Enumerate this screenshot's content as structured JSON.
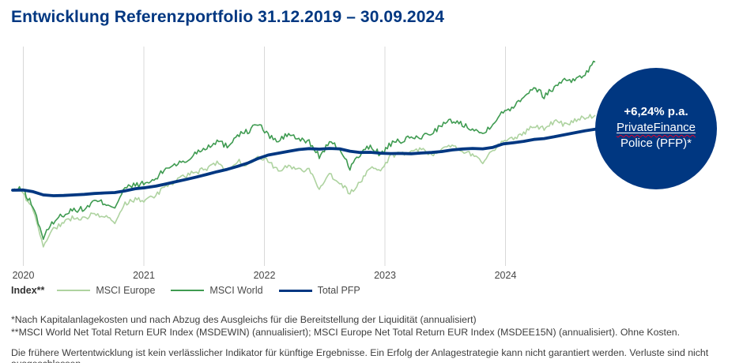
{
  "title": "Entwicklung Referenzportfolio 31.12.2019 – 30.09.2024",
  "badge": {
    "line1": "+6,24% p.a.",
    "line2": "PrivateFinance",
    "line3": "Police (PFP)*",
    "bg": "#003781",
    "text_color": "#ffffff",
    "wavy_underline_color": "#e4002b"
  },
  "legend": {
    "label": "Index**"
  },
  "footnotes": [
    "*Nach Kapitalanlagekosten und nach Abzug des Ausgleichs für die Bereitstellung der Liquidität (annualisiert)",
    "**MSCI World Net Total Return EUR Index (MSDEWIN) (annualisiert); MSCI Europe Net Total Return EUR Index (MSDEE15N) (annualisiert). Ohne Kosten."
  ],
  "disclaimer": "Die frühere Wertentwicklung ist kein verlässlicher Indikator für künftige Ergebnisse. Ein Erfolg der Anlagestrategie kann nicht garantiert werden. Verluste sind nicht ausgeschlossen.",
  "brand_color": "#003781",
  "chart_data": {
    "type": "line",
    "title": "Entwicklung Referenzportfolio 31.12.2019 – 30.09.2024",
    "x_start": "2019-12-31",
    "x_end": "2024-09-30",
    "frequency": "monthly",
    "unit": "indexed performance, 31.12.2019 = 100 (y-axis hidden)",
    "x_ticks": [
      "2020",
      "2021",
      "2022",
      "2023",
      "2024"
    ],
    "grid": "vertical year gridlines only",
    "legend_position": "bottom-left",
    "annotation": {
      "text": "+6,24% p.a. PrivateFinance Police (PFP)*",
      "value_pct_pa": 6.24
    },
    "series": [
      {
        "name": "MSCI Europe",
        "color": "#aed3a0",
        "style": "thin jagged",
        "values": [
          100,
          98.7,
          89,
          70,
          79,
          82.5,
          85.5,
          84.5,
          87.5,
          86,
          81.5,
          92.5,
          95,
          94.3,
          96.8,
          103,
          105,
          108,
          110,
          112,
          114.5,
          111,
          116,
          113.5,
          119.5,
          115.5,
          111.5,
          112.5,
          111.5,
          110.5,
          101.5,
          109,
          104.5,
          98,
          104.5,
          111.5,
          111,
          118.5,
          120.5,
          120.5,
          123,
          119.5,
          122,
          124.5,
          121.5,
          119.5,
          115.5,
          122,
          127,
          128.5,
          131,
          135.5,
          133.5,
          137.5,
          136,
          138,
          140,
          141
        ]
      },
      {
        "name": "MSCI World",
        "color": "#3f9b51",
        "style": "thin jagged",
        "values": [
          100,
          100.5,
          91,
          74,
          83,
          87,
          89.5,
          89.5,
          94,
          93,
          91,
          101,
          103,
          103.5,
          106,
          112,
          114.5,
          115.5,
          121,
          123.5,
          127,
          124,
          130.5,
          132,
          136.5,
          130,
          126.5,
          131,
          127.5,
          126.5,
          118.5,
          126,
          122.5,
          112.5,
          119.5,
          124,
          119.5,
          125,
          127,
          128.5,
          129,
          131.5,
          135.5,
          138,
          136,
          134,
          130.5,
          137,
          142.5,
          146,
          151.5,
          156.5,
          151.5,
          156,
          161,
          160,
          163.5,
          170
        ]
      },
      {
        "name": "Total PFP",
        "color": "#003781",
        "style": "thick smooth",
        "values": [
          100,
          100.1,
          99.2,
          97.4,
          97,
          97.1,
          97.4,
          97.7,
          98.2,
          98.5,
          98.7,
          99.6,
          100.8,
          101.4,
          102.2,
          103.4,
          104.7,
          105.9,
          107.2,
          108.6,
          110.1,
          111.4,
          113,
          114.8,
          117.3,
          119.2,
          120.2,
          121.2,
          122.2,
          122.7,
          122.4,
          122.8,
          122.6,
          121.3,
          120.6,
          120.7,
          120.2,
          120,
          120.1,
          119.9,
          120.3,
          120.6,
          121.1,
          122,
          122.5,
          122.8,
          122.6,
          123.4,
          125.3,
          125.9,
          126.7,
          127.7,
          128.2,
          129.2,
          130.3,
          131.4,
          132.4,
          133.3
        ]
      }
    ]
  }
}
